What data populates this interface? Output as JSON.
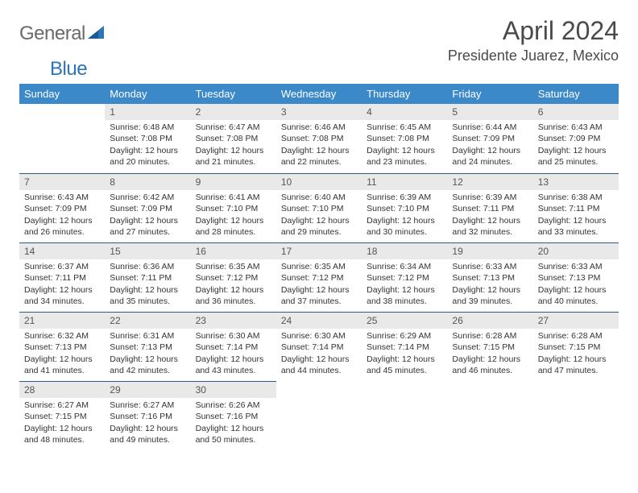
{
  "brand": {
    "part1": "General",
    "part2": "Blue"
  },
  "header": {
    "title": "April 2024",
    "location": "Presidente Juarez, Mexico"
  },
  "style": {
    "header_bg": "#3b89c9",
    "header_fg": "#ffffff",
    "daynum_bg": "#e9e9e9",
    "rule_color": "#2d5b85",
    "text_color": "#333333",
    "brand_gray": "#6a6a6a",
    "brand_blue": "#2d74b8",
    "title_fontsize": 32,
    "location_fontsize": 18,
    "th_fontsize": 13,
    "cell_fontsize": 10.5
  },
  "weekdays": [
    "Sunday",
    "Monday",
    "Tuesday",
    "Wednesday",
    "Thursday",
    "Friday",
    "Saturday"
  ],
  "weeks": [
    [
      null,
      {
        "n": "1",
        "sr": "6:48 AM",
        "ss": "7:08 PM",
        "dl": "12 hours and 20 minutes."
      },
      {
        "n": "2",
        "sr": "6:47 AM",
        "ss": "7:08 PM",
        "dl": "12 hours and 21 minutes."
      },
      {
        "n": "3",
        "sr": "6:46 AM",
        "ss": "7:08 PM",
        "dl": "12 hours and 22 minutes."
      },
      {
        "n": "4",
        "sr": "6:45 AM",
        "ss": "7:08 PM",
        "dl": "12 hours and 23 minutes."
      },
      {
        "n": "5",
        "sr": "6:44 AM",
        "ss": "7:09 PM",
        "dl": "12 hours and 24 minutes."
      },
      {
        "n": "6",
        "sr": "6:43 AM",
        "ss": "7:09 PM",
        "dl": "12 hours and 25 minutes."
      }
    ],
    [
      {
        "n": "7",
        "sr": "6:43 AM",
        "ss": "7:09 PM",
        "dl": "12 hours and 26 minutes."
      },
      {
        "n": "8",
        "sr": "6:42 AM",
        "ss": "7:09 PM",
        "dl": "12 hours and 27 minutes."
      },
      {
        "n": "9",
        "sr": "6:41 AM",
        "ss": "7:10 PM",
        "dl": "12 hours and 28 minutes."
      },
      {
        "n": "10",
        "sr": "6:40 AM",
        "ss": "7:10 PM",
        "dl": "12 hours and 29 minutes."
      },
      {
        "n": "11",
        "sr": "6:39 AM",
        "ss": "7:10 PM",
        "dl": "12 hours and 30 minutes."
      },
      {
        "n": "12",
        "sr": "6:39 AM",
        "ss": "7:11 PM",
        "dl": "12 hours and 32 minutes."
      },
      {
        "n": "13",
        "sr": "6:38 AM",
        "ss": "7:11 PM",
        "dl": "12 hours and 33 minutes."
      }
    ],
    [
      {
        "n": "14",
        "sr": "6:37 AM",
        "ss": "7:11 PM",
        "dl": "12 hours and 34 minutes."
      },
      {
        "n": "15",
        "sr": "6:36 AM",
        "ss": "7:11 PM",
        "dl": "12 hours and 35 minutes."
      },
      {
        "n": "16",
        "sr": "6:35 AM",
        "ss": "7:12 PM",
        "dl": "12 hours and 36 minutes."
      },
      {
        "n": "17",
        "sr": "6:35 AM",
        "ss": "7:12 PM",
        "dl": "12 hours and 37 minutes."
      },
      {
        "n": "18",
        "sr": "6:34 AM",
        "ss": "7:12 PM",
        "dl": "12 hours and 38 minutes."
      },
      {
        "n": "19",
        "sr": "6:33 AM",
        "ss": "7:13 PM",
        "dl": "12 hours and 39 minutes."
      },
      {
        "n": "20",
        "sr": "6:33 AM",
        "ss": "7:13 PM",
        "dl": "12 hours and 40 minutes."
      }
    ],
    [
      {
        "n": "21",
        "sr": "6:32 AM",
        "ss": "7:13 PM",
        "dl": "12 hours and 41 minutes."
      },
      {
        "n": "22",
        "sr": "6:31 AM",
        "ss": "7:13 PM",
        "dl": "12 hours and 42 minutes."
      },
      {
        "n": "23",
        "sr": "6:30 AM",
        "ss": "7:14 PM",
        "dl": "12 hours and 43 minutes."
      },
      {
        "n": "24",
        "sr": "6:30 AM",
        "ss": "7:14 PM",
        "dl": "12 hours and 44 minutes."
      },
      {
        "n": "25",
        "sr": "6:29 AM",
        "ss": "7:14 PM",
        "dl": "12 hours and 45 minutes."
      },
      {
        "n": "26",
        "sr": "6:28 AM",
        "ss": "7:15 PM",
        "dl": "12 hours and 46 minutes."
      },
      {
        "n": "27",
        "sr": "6:28 AM",
        "ss": "7:15 PM",
        "dl": "12 hours and 47 minutes."
      }
    ],
    [
      {
        "n": "28",
        "sr": "6:27 AM",
        "ss": "7:15 PM",
        "dl": "12 hours and 48 minutes."
      },
      {
        "n": "29",
        "sr": "6:27 AM",
        "ss": "7:16 PM",
        "dl": "12 hours and 49 minutes."
      },
      {
        "n": "30",
        "sr": "6:26 AM",
        "ss": "7:16 PM",
        "dl": "12 hours and 50 minutes."
      },
      null,
      null,
      null,
      null
    ]
  ],
  "labels": {
    "sunrise": "Sunrise:",
    "sunset": "Sunset:",
    "daylight": "Daylight:"
  }
}
